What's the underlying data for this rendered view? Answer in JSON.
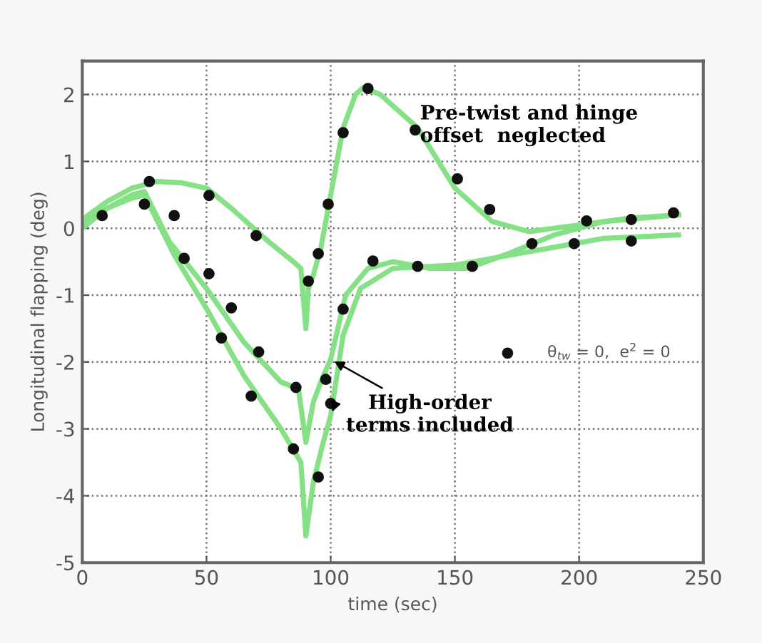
{
  "chart_data": {
    "type": "line",
    "xlabel": "time (sec)",
    "ylabel": "Longitudinal flapping (deg)",
    "xlim": [
      0,
      250
    ],
    "ylim": [
      -5,
      2.5
    ],
    "xticks": [
      0,
      50,
      100,
      150,
      200,
      250
    ],
    "yticks": [
      -5,
      -4,
      -3,
      -2,
      -1,
      0,
      1,
      2
    ],
    "grid": true,
    "legend": "right",
    "series": [
      {
        "color": "#86e086",
        "x": [
          0,
          10,
          20,
          30,
          40,
          50,
          60,
          75,
          85,
          88,
          90,
          91,
          93,
          96,
          100,
          105,
          110,
          113,
          120,
          135,
          150,
          165,
          180,
          200,
          220,
          240
        ],
        "values": [
          0.13,
          0.4,
          0.6,
          0.7,
          0.68,
          0.6,
          0.3,
          -0.2,
          -0.5,
          -0.6,
          -1.5,
          -0.9,
          -0.7,
          -0.3,
          0.5,
          1.5,
          2.0,
          2.1,
          2.0,
          1.5,
          0.6,
          0.1,
          -0.05,
          0.05,
          0.15,
          0.2
        ]
      },
      {
        "color": "#86e086",
        "x": [
          0,
          10,
          20,
          25,
          35,
          50,
          65,
          80,
          87,
          90,
          93,
          96,
          100,
          106,
          115,
          125,
          140,
          155,
          170,
          190,
          210,
          240
        ],
        "values": [
          0.0,
          0.3,
          0.5,
          0.55,
          -0.2,
          -0.9,
          -1.7,
          -2.3,
          -2.4,
          -3.2,
          -2.6,
          -2.3,
          -1.96,
          -1.0,
          -0.6,
          -0.5,
          -0.6,
          -0.6,
          -0.4,
          -0.1,
          0.1,
          0.2
        ]
      },
      {
        "color": "#86e086",
        "x": [
          0,
          10,
          20,
          25,
          37,
          50,
          65,
          80,
          88,
          90,
          93,
          97,
          100,
          105,
          112,
          125,
          150,
          180,
          210,
          240
        ],
        "values": [
          0.1,
          0.3,
          0.45,
          0.5,
          -0.4,
          -1.2,
          -2.2,
          -3.0,
          -3.5,
          -4.6,
          -3.8,
          -3.2,
          -2.8,
          -1.6,
          -0.9,
          -0.6,
          -0.55,
          -0.35,
          -0.15,
          -0.1
        ]
      },
      {
        "type": "scatter",
        "name": "θ$_{tw}$ = 0,  e$^{2}$ = 0",
        "color": "#111111",
        "marker": "circle",
        "x": [
          8,
          25,
          27,
          37,
          41,
          51,
          51,
          56,
          60,
          68,
          70,
          71,
          85,
          86,
          91,
          95,
          95,
          98,
          99,
          100,
          105,
          105,
          115,
          117,
          134,
          135,
          151,
          157,
          164,
          181,
          198,
          203,
          221,
          221,
          238
        ],
        "values": [
          0.19,
          0.36,
          0.7,
          0.19,
          -0.45,
          0.49,
          -0.68,
          -1.64,
          -1.19,
          -2.51,
          -0.11,
          -1.85,
          -3.3,
          -2.38,
          -0.79,
          -3.72,
          -0.38,
          -2.26,
          0.36,
          -2.62,
          1.43,
          -1.21,
          2.09,
          -0.49,
          1.47,
          -0.57,
          0.74,
          -0.57,
          0.28,
          -0.23,
          -0.23,
          0.11,
          0.13,
          -0.19,
          0.23
        ]
      }
    ],
    "annotations": [
      {
        "text": "Pre-twist and hinge\noffset  neglected",
        "x": 120,
        "y": 2.0
      },
      {
        "text": "High-order\nterms included",
        "x": 100,
        "y": -1.96
      }
    ]
  }
}
